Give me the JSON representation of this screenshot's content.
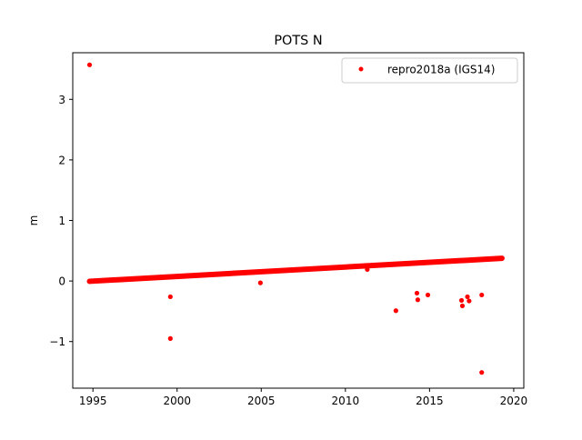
{
  "chart_data": {
    "type": "scatter",
    "title": "POTS N",
    "xlabel": "",
    "ylabel": "m",
    "xlim": [
      1993.8,
      2020.6
    ],
    "ylim": [
      -1.77,
      3.77
    ],
    "x_ticks": [
      1995,
      2000,
      2005,
      2010,
      2015,
      2020
    ],
    "x_tick_labels": [
      "1995",
      "2000",
      "2005",
      "2010",
      "2015",
      "2020"
    ],
    "y_ticks": [
      -1,
      0,
      1,
      2,
      3
    ],
    "y_tick_labels": [
      "−1",
      "0",
      "1",
      "2",
      "3"
    ],
    "grid": false,
    "legend_position": "top-right",
    "series": [
      {
        "name": "repro2018a (IGS14)",
        "color": "#ff0000",
        "marker": "point",
        "trend": {
          "x_start": 1994.8,
          "y_start": -0.005,
          "x_end": 2019.3,
          "y_end": 0.375
        },
        "points": [
          [
            1994.8,
            3.57
          ],
          [
            1999.6,
            -0.26
          ],
          [
            1999.6,
            -0.95
          ],
          [
            2004.95,
            -0.03
          ],
          [
            2011.3,
            0.19
          ],
          [
            2013.0,
            -0.49
          ],
          [
            2014.25,
            -0.2
          ],
          [
            2014.3,
            -0.31
          ],
          [
            2014.9,
            -0.23
          ],
          [
            2016.9,
            -0.32
          ],
          [
            2016.95,
            -0.41
          ],
          [
            2017.25,
            -0.26
          ],
          [
            2017.35,
            -0.33
          ],
          [
            2018.1,
            -0.23
          ],
          [
            2018.1,
            -1.51
          ]
        ]
      }
    ]
  }
}
